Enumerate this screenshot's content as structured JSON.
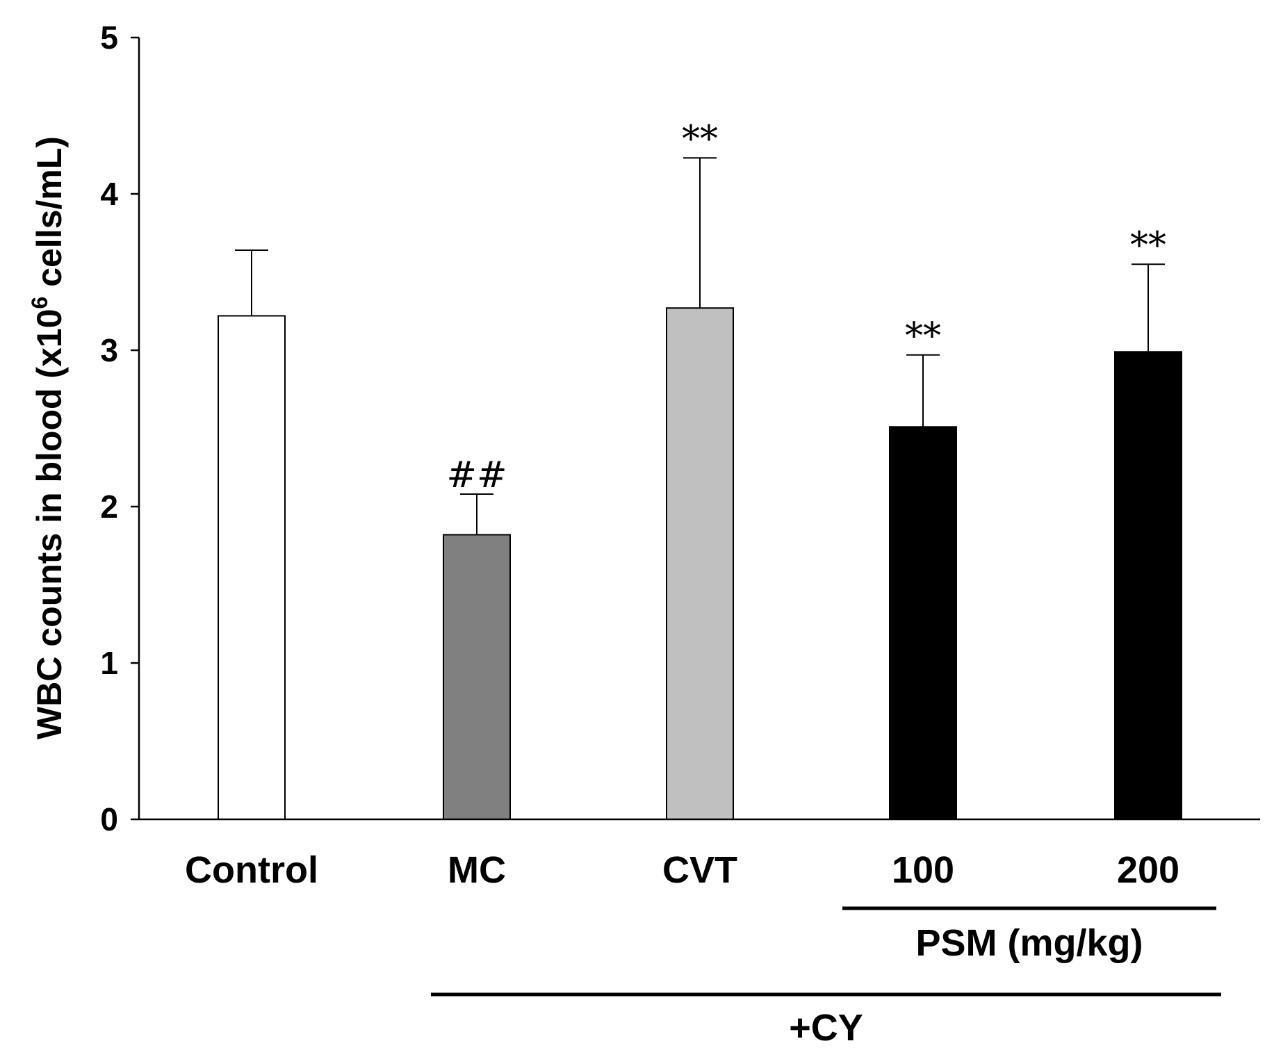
{
  "chart_data": {
    "type": "bar",
    "title": "",
    "ylabel": {
      "main": "WBC counts in blood (x10",
      "superscript": "6",
      "suffix": " cells/mL)"
    },
    "xlabel": "",
    "ylim": [
      0,
      5
    ],
    "yticks": [
      0,
      1,
      2,
      3,
      4,
      5
    ],
    "categories": [
      "Control",
      "MC",
      "CVT",
      "100",
      "200"
    ],
    "values": [
      3.22,
      1.82,
      3.27,
      2.51,
      2.99
    ],
    "errors": [
      0.42,
      0.26,
      0.96,
      0.46,
      0.56
    ],
    "colors": [
      "#ffffff",
      "#808080",
      "#c0c0c0",
      "#000000",
      "#000000"
    ],
    "significance": [
      "",
      "##",
      "**",
      "**",
      "**"
    ],
    "groups": [
      {
        "label": "PSM (mg/kg)",
        "from": 3,
        "to": 4
      },
      {
        "label": "+CY",
        "from": 1,
        "to": 4
      }
    ],
    "grid": false,
    "legend": "none"
  }
}
